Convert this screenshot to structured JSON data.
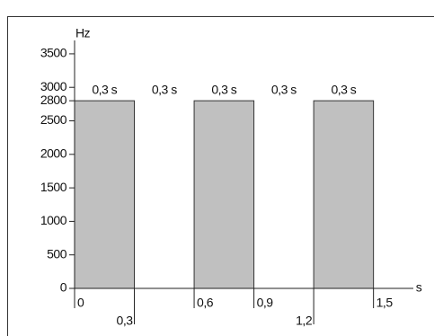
{
  "chart_data": {
    "type": "bar",
    "y_label": "Hz",
    "x_label": "s",
    "bars": [
      [
        0,
        0.3
      ],
      [
        0.6,
        0.9
      ],
      [
        1.2,
        1.5
      ]
    ],
    "values": [
      2800,
      2800,
      2800
    ],
    "color": "#c0c0c0",
    "interval_labels": [
      "0,3 s",
      "0,3 s",
      "0,3 s",
      "0,3 s",
      "0,3 s"
    ],
    "xlim": [
      0,
      1.7
    ],
    "xticks": [
      0,
      {
        "value": 0.3,
        "label": "0,3"
      },
      {
        "value": 0.6,
        "label": "0,6"
      },
      {
        "value": 0.9,
        "label": "0,9"
      },
      {
        "value": 1.2,
        "label": "1,2"
      },
      {
        "value": 1.5,
        "label": "1,5"
      }
    ],
    "ylim": [
      0,
      3700
    ],
    "yticks": [
      0,
      500,
      1000,
      1500,
      2000,
      2500,
      2800,
      3000,
      3500
    ],
    "grid": false
  }
}
